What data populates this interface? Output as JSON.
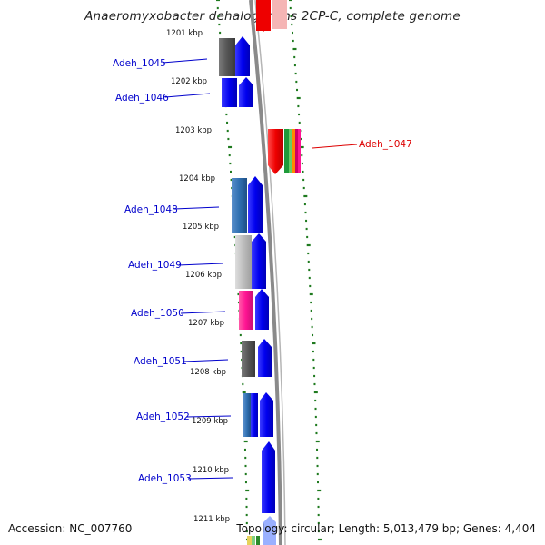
{
  "title": "Anaeromyxobacter dehalogenans 2CP-C, complete genome",
  "footer": {
    "accession": "Accession: NC_007760",
    "topology": "Topology: circular; Length: 5,013,479 bp; Genes: 4,404"
  },
  "colors": {
    "backbone": "#8a8a8a",
    "tick": "#1f7a1f",
    "label_blue": "#0000cc",
    "label_red": "#dd0000",
    "gene_blue": "#0000ee"
  },
  "ruler_labels": [
    "1201 kbp",
    "1202 kbp",
    "1203 kbp",
    "1204 kbp",
    "1205 kbp",
    "1206 kbp",
    "1207 kbp",
    "1208 kbp",
    "1209 kbp",
    "1210 kbp",
    "1211 kbp"
  ],
  "genes": [
    {
      "locus": "Adeh_1045",
      "strand": "reverse",
      "function_color": "#555555"
    },
    {
      "locus": "Adeh_1046",
      "strand": "reverse",
      "function_color": "#0000ee"
    },
    {
      "locus": "Adeh_1047",
      "strand": "forward",
      "function_color": "#ee0000"
    },
    {
      "locus": "Adeh_1048",
      "strand": "reverse",
      "function_color": "#2f6fb0"
    },
    {
      "locus": "Adeh_1049",
      "strand": "reverse",
      "function_color": "#bdbdbd"
    },
    {
      "locus": "Adeh_1050",
      "strand": "reverse",
      "function_color": "#ff1493"
    },
    {
      "locus": "Adeh_1051",
      "strand": "reverse",
      "function_color": "#555555"
    },
    {
      "locus": "Adeh_1052",
      "strand": "reverse",
      "function_color": "#2f6fb0"
    },
    {
      "locus": "Adeh_1053",
      "strand": "reverse",
      "function_color": "#0000ee"
    }
  ]
}
